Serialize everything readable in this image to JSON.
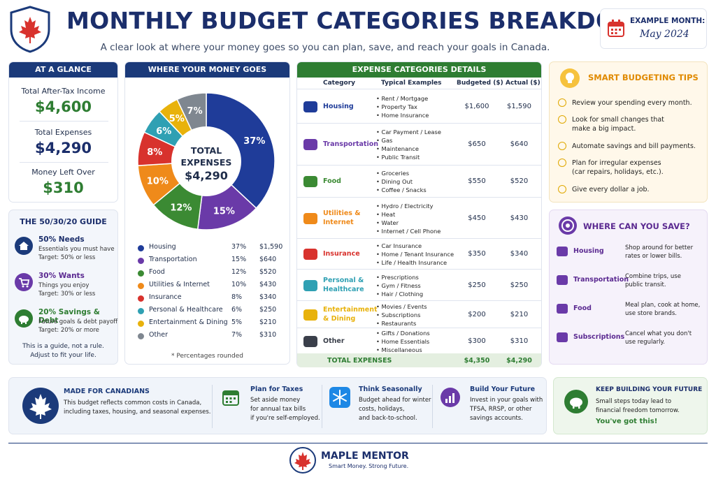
{
  "header": {
    "title": "MONTHLY BUDGET CATEGORIES BREAKDOWN",
    "subtitle": "A clear look at where your money goes so you can plan, save, and reach your goals in Canada.",
    "month_label": "EXAMPLE MONTH:",
    "month_value": "May 2024"
  },
  "glance": {
    "heading": "AT A GLANCE",
    "income_label": "Total After-Tax Income",
    "income_value": "$4,600",
    "expenses_label": "Total Expenses",
    "expenses_value": "$4,290",
    "left_label": "Money Left Over",
    "left_value": "$310"
  },
  "guide": {
    "heading": "THE 50/30/20 GUIDE",
    "items": [
      {
        "title": "50% Needs",
        "line1": "Essentials you must have",
        "line2": "Target: 50% or less"
      },
      {
        "title": "30% Wants",
        "line1": "Things you enjoy",
        "line2": "Target: 30% or less"
      },
      {
        "title": "20% Savings & Debt",
        "line1": "Future goals & debt payoff",
        "line2": "Target: 20% or more"
      }
    ],
    "note1": "This is a guide, not a rule.",
    "note2": "Adjust to fit your life."
  },
  "pie": {
    "heading": "WHERE YOUR MONEY GOES",
    "center_label": "TOTAL EXPENSES",
    "center_label_1": "TOTAL",
    "center_label_2": "EXPENSES",
    "center_value": "$4,290",
    "footnote": "* Percentages rounded"
  },
  "chart_data": {
    "type": "pie",
    "title": "WHERE YOUR MONEY GOES",
    "categories": [
      "Housing",
      "Transportation",
      "Food",
      "Utilities & Internet",
      "Insurance",
      "Personal & Healthcare",
      "Entertainment & Dining",
      "Other"
    ],
    "values": [
      37,
      15,
      12,
      10,
      8,
      6,
      5,
      7
    ],
    "value_labels": [
      "37%",
      "15%",
      "12%",
      "10%",
      "8%",
      "6%",
      "5%",
      "7%"
    ],
    "amounts": [
      "$1,590",
      "$640",
      "$520",
      "$430",
      "$340",
      "$250",
      "$210",
      "$310"
    ],
    "colors": [
      "#1f3c99",
      "#6a3aa8",
      "#3b8a33",
      "#ef8a1a",
      "#d8322d",
      "#2fa0b3",
      "#e8b20c",
      "#7f8790"
    ],
    "legend": "bottom"
  },
  "table": {
    "heading": "EXPENSE CATEGORIES DETAILS",
    "col_category": "Category",
    "col_examples": "Typical Examples",
    "col_budgeted": "Budgeted ($)",
    "col_actual": "Actual ($)",
    "rows": [
      {
        "name1": "Housing",
        "name2": "",
        "color": "#1f3c99",
        "ex": [
          "Rent / Mortgage",
          "Property Tax",
          "Home Insurance"
        ],
        "budgeted": "$1,600",
        "actual": "$1,590"
      },
      {
        "name1": "Transportation",
        "name2": "",
        "color": "#6a3aa8",
        "ex": [
          "Car Payment / Lease",
          "Gas",
          "Maintenance",
          "Public Transit"
        ],
        "budgeted": "$650",
        "actual": "$640"
      },
      {
        "name1": "Food",
        "name2": "",
        "color": "#3b8a33",
        "ex": [
          "Groceries",
          "Dining Out",
          "Coffee / Snacks"
        ],
        "budgeted": "$550",
        "actual": "$520"
      },
      {
        "name1": "Utilities &",
        "name2": "Internet",
        "color": "#ef8a1a",
        "ex": [
          "Hydro / Electricity",
          "Heat",
          "Water",
          "Internet / Cell Phone"
        ],
        "budgeted": "$450",
        "actual": "$430"
      },
      {
        "name1": "Insurance",
        "name2": "",
        "color": "#d8322d",
        "ex": [
          "Car Insurance",
          "Home / Tenant Insurance",
          "Life / Health Insurance"
        ],
        "budgeted": "$350",
        "actual": "$340"
      },
      {
        "name1": "Personal &",
        "name2": "Healthcare",
        "color": "#2fa0b3",
        "ex": [
          "Prescriptions",
          "Gym / Fitness",
          "Hair / Clothing"
        ],
        "budgeted": "$250",
        "actual": "$250"
      },
      {
        "name1": "Entertainment",
        "name2": "& Dining",
        "color": "#e8b20c",
        "ex": [
          "Movies / Events",
          "Subscriptions",
          "Restaurants"
        ],
        "budgeted": "$200",
        "actual": "$210"
      },
      {
        "name1": "Other",
        "name2": "",
        "color": "#3a3f4a",
        "ex": [
          "Gifts / Donations",
          "Home Essentials",
          "Miscellaneous"
        ],
        "budgeted": "$300",
        "actual": "$310"
      }
    ],
    "total_label": "TOTAL EXPENSES",
    "total_budgeted": "$4,350",
    "total_actual": "$4,290"
  },
  "tips": {
    "heading": "SMART BUDGETING TIPS",
    "items": [
      [
        "Review your spending every month.",
        ""
      ],
      [
        "Look for small changes that",
        "make a big impact."
      ],
      [
        "Automate savings and bill payments.",
        ""
      ],
      [
        "Plan for irregular expenses",
        "(car repairs, holidays, etc.)."
      ],
      [
        "Give every dollar a job.",
        ""
      ]
    ]
  },
  "save": {
    "heading": "WHERE CAN YOU SAVE?",
    "items": [
      {
        "cat": "Housing",
        "tip1": "Shop around for better",
        "tip2": "rates or lower bills."
      },
      {
        "cat": "Transportation",
        "tip1": "Combine trips, use",
        "tip2": "public transit."
      },
      {
        "cat": "Food",
        "tip1": "Meal plan, cook at home,",
        "tip2": "use store brands."
      },
      {
        "cat": "Subscriptions",
        "tip1": "Cancel what you don't",
        "tip2": "use regularly."
      }
    ]
  },
  "bottom": {
    "canadians_title": "MADE FOR CANADIANS",
    "canadians_1": "This budget reflects common costs in Canada,",
    "canadians_2": "including taxes, housing, and seasonal expenses.",
    "taxes_title": "Plan for Taxes",
    "taxes_1": "Set aside money",
    "taxes_2": "for annual tax bills",
    "taxes_3": "if you're self-employed.",
    "season_title": "Think Seasonally",
    "season_1": "Budget ahead for winter",
    "season_2": "costs, holidays,",
    "season_3": "and back-to-school.",
    "future_title": "Build Your Future",
    "future_1": "Invest in your goals with",
    "future_2": "TFSA, RRSP, or other",
    "future_3": "savings accounts.",
    "keep_title": "KEEP BUILDING YOUR FUTURE",
    "keep_1": "Small steps today lead to",
    "keep_2": "financial freedom tomorrow.",
    "keep_3": "You've got this!"
  },
  "brand": {
    "name": "MAPLE MENTOR",
    "tagline": "Smart Money. Strong Future."
  }
}
